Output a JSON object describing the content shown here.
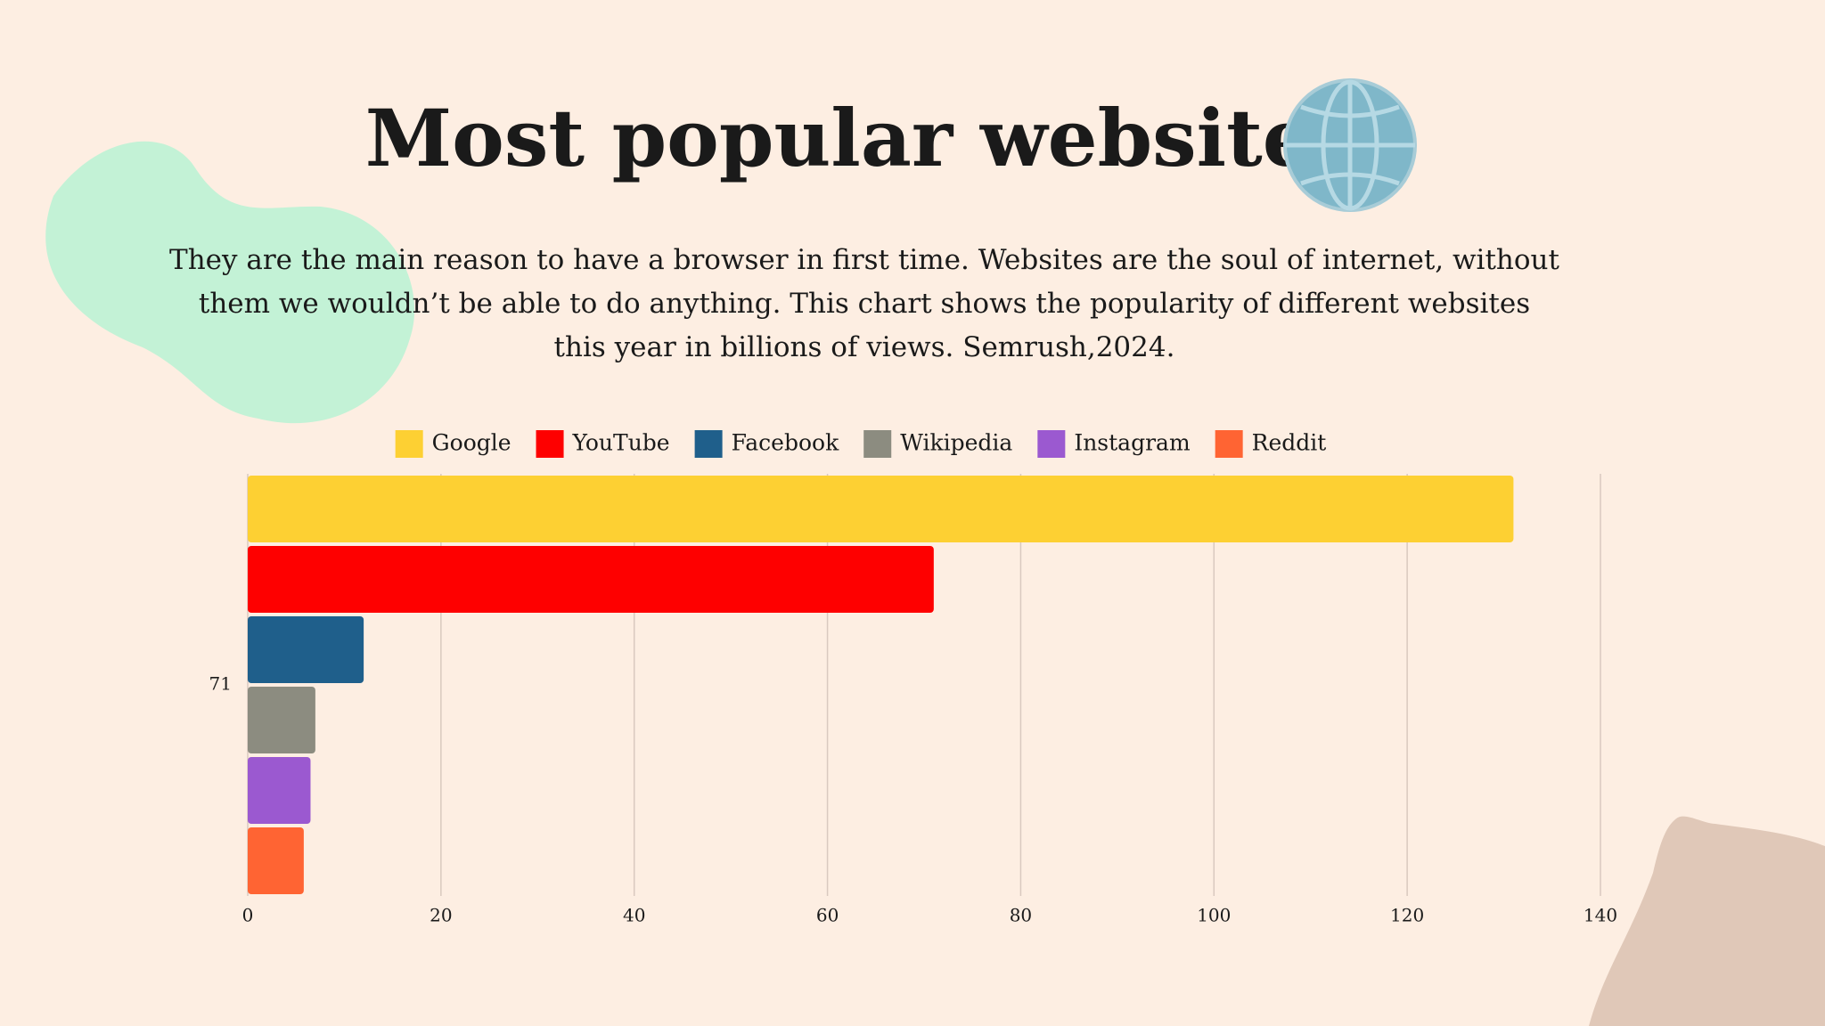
{
  "chart_data": {
    "type": "bar",
    "orientation": "horizontal",
    "title": "Most popular websites",
    "subtitle": "They are the main reason to have a browser in first time. Websites are the soul of internet, without them we wouldn’t be able to do anything. This chart shows the popularity of different websites this year in billions of views. Semrush,2024.",
    "categories": [
      "71"
    ],
    "series": [
      {
        "name": "Google",
        "color": "#fdd033",
        "values": [
          131
        ]
      },
      {
        "name": "YouTube",
        "color": "#fe0000",
        "values": [
          71
        ]
      },
      {
        "name": "Facebook",
        "color": "#1f5f8b",
        "values": [
          12
        ]
      },
      {
        "name": "Wikipedia",
        "color": "#8c8c80",
        "values": [
          7
        ]
      },
      {
        "name": "Instagram",
        "color": "#9b59d0",
        "values": [
          6.5
        ]
      },
      {
        "name": "Reddit",
        "color": "#ff6433",
        "values": [
          5.8
        ]
      }
    ],
    "xlim": [
      0,
      140
    ],
    "xticks": [
      0,
      20,
      40,
      60,
      80,
      100,
      120,
      140
    ],
    "grid": true,
    "legend": "top"
  }
}
